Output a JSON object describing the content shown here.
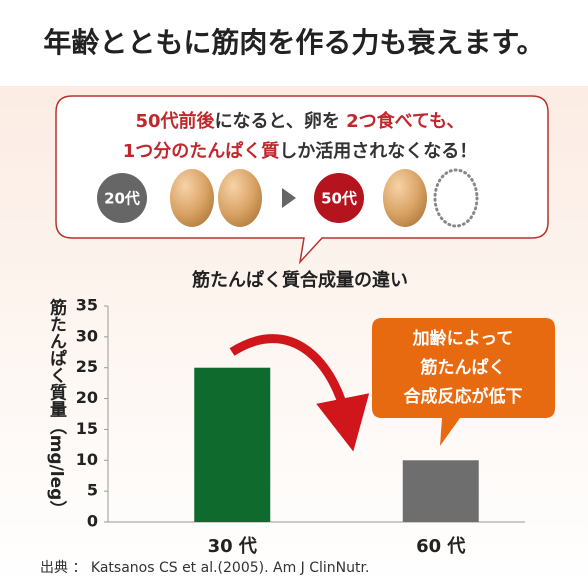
{
  "header": {
    "title": "年齢とともに筋肉を作る力も衰えます。"
  },
  "bubble": {
    "lines": [
      [
        {
          "text": "50代前後",
          "color": "#c0282d"
        },
        {
          "text": "になると、卵を",
          "color": "#333333"
        },
        {
          "text": " 2つ食べても、",
          "color": "#c0282d"
        }
      ],
      [
        {
          "text": "1つ分のたんぱく質",
          "color": "#c0282d"
        },
        {
          "text": "しか活用されなくなる！",
          "color": "#333333"
        }
      ]
    ],
    "age_before": "20代",
    "age_after": "50代"
  },
  "chart_data": {
    "type": "bar",
    "title": "筋たんぱく質合成量の違い",
    "y_label": "筋たんぱく質量（mg/leg）",
    "categories": [
      "30 代",
      "60 代"
    ],
    "values": [
      25,
      10
    ],
    "colors": [
      "#0f6a2d",
      "#6e6e6e"
    ],
    "ylim": [
      0,
      35
    ],
    "yticks": [
      0,
      5,
      10,
      15,
      20,
      25,
      30,
      35
    ],
    "grid": false,
    "annotation": [
      "加齢によって",
      "筋たんぱく",
      "合成反応が低下"
    ]
  },
  "source": "出典 ： Katsanos CS et al.(2005). Am J ClinNutr."
}
